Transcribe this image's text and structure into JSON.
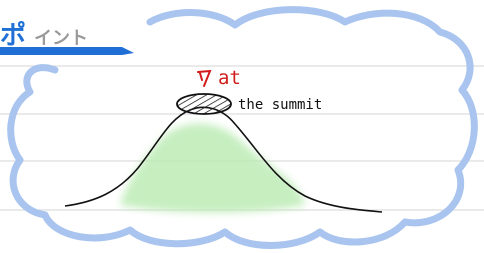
{
  "header": {
    "title_first": "ポ",
    "title_rest": "イント"
  },
  "annotations": {
    "red_word": "at",
    "summit_label": "the summit"
  }
}
